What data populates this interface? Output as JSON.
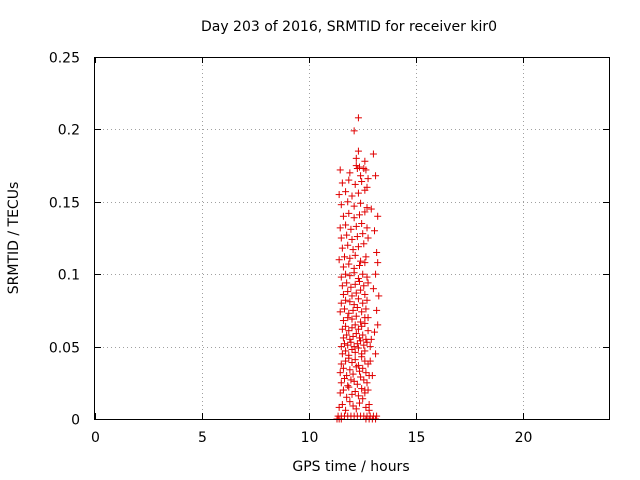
{
  "chart_data": {
    "type": "scatter",
    "title": "Day 203 of 2016, SRMTID for receiver kir0",
    "xlabel": "GPS time / hours",
    "ylabel": "SRMTID / TECUs",
    "xlim": [
      0,
      24
    ],
    "ylim": [
      0,
      0.25
    ],
    "xticks": [
      0,
      5,
      10,
      15,
      20
    ],
    "xtick_labels": [
      "0",
      "5",
      "10",
      "15",
      "20"
    ],
    "yticks": [
      0,
      0.05,
      0.1,
      0.15,
      0.2,
      0.25
    ],
    "ytick_labels": [
      "0",
      "0.05",
      "0.1",
      "0.15",
      "0.2",
      "0.25"
    ],
    "grid": true,
    "marker": "+",
    "color": "#e00000",
    "series": [
      {
        "name": "kir0",
        "x": [
          11.35,
          11.5,
          11.65,
          11.8,
          11.95,
          12.1,
          12.25,
          12.4,
          12.55,
          12.7,
          12.85,
          13.0,
          13.15,
          11.4,
          11.55,
          11.7,
          11.9,
          12.05,
          12.2,
          12.35,
          12.5,
          12.65,
          12.8,
          11.45,
          11.6,
          11.75,
          11.85,
          12.0,
          12.15,
          12.3,
          12.45,
          12.6,
          12.75,
          11.5,
          11.65,
          11.8,
          11.95,
          12.1,
          12.25,
          12.4,
          12.55,
          12.7,
          11.45,
          11.6,
          11.75,
          11.9,
          12.05,
          12.2,
          12.35,
          12.5,
          12.65,
          12.8,
          11.5,
          11.7,
          11.85,
          12.0,
          12.15,
          12.3,
          12.45,
          12.6,
          12.75,
          11.55,
          11.7,
          11.85,
          12.0,
          12.15,
          12.3,
          12.45,
          12.6,
          11.5,
          11.65,
          11.8,
          11.95,
          12.1,
          12.25,
          12.4,
          12.55,
          12.7,
          12.85,
          11.6,
          11.75,
          11.9,
          12.05,
          12.2,
          12.35,
          12.5,
          12.65,
          11.55,
          11.7,
          11.85,
          12.0,
          12.15,
          12.3,
          12.45,
          12.6,
          12.75,
          11.6,
          11.8,
          12.0,
          12.2,
          12.4,
          12.6,
          11.45,
          11.65,
          11.85,
          12.05,
          12.25,
          12.45,
          12.65,
          11.5,
          11.7,
          11.9,
          12.1,
          12.3,
          12.5,
          12.7,
          11.6,
          11.8,
          12.0,
          12.2,
          12.4,
          12.6,
          11.55,
          11.75,
          11.95,
          12.15,
          12.35,
          12.55,
          12.75,
          11.5,
          11.7,
          11.9,
          12.1,
          12.3,
          12.5,
          12.7,
          11.6,
          11.85,
          12.1,
          12.35,
          12.6,
          11.4,
          11.65,
          11.9,
          12.15,
          12.4,
          12.65,
          11.55,
          11.8,
          12.05,
          12.3,
          12.55,
          11.5,
          11.75,
          12.0,
          12.25,
          12.5,
          12.75,
          11.45,
          11.7,
          11.95,
          12.2,
          12.45,
          12.7,
          11.6,
          11.85,
          12.1,
          12.35,
          12.6,
          11.5,
          11.8,
          12.1,
          12.4,
          12.7,
          11.4,
          11.7,
          12.0,
          12.3,
          12.6,
          11.55,
          11.85,
          12.15,
          12.45,
          12.75,
          11.45,
          12.25,
          12.35,
          12.55,
          12.65,
          11.9,
          12.2,
          12.6,
          12.4,
          12.1,
          12.3,
          12.7,
          12.3,
          12.9,
          12.2,
          13.0,
          13.1,
          13.2,
          13.05,
          13.15,
          13.2,
          13.1,
          13.0,
          13.25,
          13.15,
          13.2,
          13.05,
          12.9,
          13.1,
          12.75,
          12.85,
          12.95,
          12.6,
          12.8,
          11.3,
          11.4,
          11.5,
          12.65,
          12.8,
          12.95,
          13.1
        ],
        "y": [
          0.002,
          0.002,
          0.002,
          0.002,
          0.002,
          0.002,
          0.002,
          0.002,
          0.002,
          0.002,
          0.002,
          0.002,
          0.002,
          0.008,
          0.01,
          0.006,
          0.012,
          0.009,
          0.007,
          0.011,
          0.014,
          0.008,
          0.006,
          0.018,
          0.02,
          0.015,
          0.022,
          0.017,
          0.019,
          0.016,
          0.021,
          0.018,
          0.02,
          0.025,
          0.028,
          0.023,
          0.027,
          0.026,
          0.024,
          0.029,
          0.027,
          0.025,
          0.032,
          0.035,
          0.03,
          0.034,
          0.031,
          0.036,
          0.033,
          0.035,
          0.032,
          0.03,
          0.038,
          0.04,
          0.042,
          0.039,
          0.041,
          0.037,
          0.043,
          0.04,
          0.038,
          0.045,
          0.047,
          0.044,
          0.048,
          0.046,
          0.049,
          0.045,
          0.047,
          0.05,
          0.052,
          0.051,
          0.053,
          0.05,
          0.052,
          0.054,
          0.051,
          0.053,
          0.05,
          0.056,
          0.058,
          0.055,
          0.057,
          0.059,
          0.056,
          0.058,
          0.055,
          0.062,
          0.064,
          0.061,
          0.063,
          0.065,
          0.062,
          0.064,
          0.066,
          0.061,
          0.068,
          0.07,
          0.069,
          0.071,
          0.067,
          0.07,
          0.074,
          0.076,
          0.073,
          0.075,
          0.077,
          0.074,
          0.076,
          0.08,
          0.082,
          0.081,
          0.079,
          0.083,
          0.08,
          0.082,
          0.086,
          0.088,
          0.085,
          0.087,
          0.089,
          0.086,
          0.092,
          0.094,
          0.091,
          0.093,
          0.095,
          0.092,
          0.094,
          0.098,
          0.1,
          0.099,
          0.101,
          0.097,
          0.1,
          0.098,
          0.105,
          0.107,
          0.104,
          0.106,
          0.108,
          0.11,
          0.112,
          0.111,
          0.113,
          0.109,
          0.112,
          0.118,
          0.12,
          0.117,
          0.119,
          0.121,
          0.125,
          0.127,
          0.124,
          0.126,
          0.128,
          0.125,
          0.132,
          0.134,
          0.131,
          0.133,
          0.135,
          0.132,
          0.14,
          0.142,
          0.139,
          0.141,
          0.143,
          0.148,
          0.15,
          0.147,
          0.149,
          0.146,
          0.155,
          0.157,
          0.154,
          0.156,
          0.158,
          0.163,
          0.165,
          0.162,
          0.164,
          0.166,
          0.172,
          0.173,
          0.174,
          0.173,
          0.172,
          0.17,
          0.175,
          0.178,
          0.168,
          0.199,
          0.185,
          0.16,
          0.208,
          0.145,
          0.18,
          0.183,
          0.168,
          0.14,
          0.13,
          0.115,
          0.108,
          0.1,
          0.09,
          0.085,
          0.075,
          0.065,
          0.06,
          0.055,
          0.045,
          0.07,
          0.04,
          0.03,
          0.02,
          0.01,
          0.0,
          0.0,
          0.0,
          0.0,
          0.0,
          0.0,
          0.0
        ]
      }
    ]
  }
}
